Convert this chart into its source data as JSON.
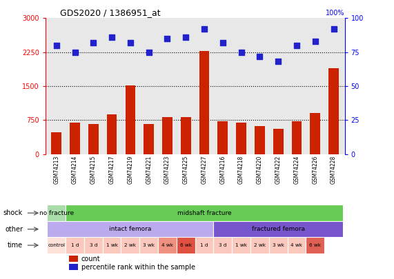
{
  "title": "GDS2020 / 1386951_at",
  "samples": [
    "GSM74213",
    "GSM74214",
    "GSM74215",
    "GSM74217",
    "GSM74219",
    "GSM74221",
    "GSM74223",
    "GSM74225",
    "GSM74227",
    "GSM74216",
    "GSM74218",
    "GSM74220",
    "GSM74222",
    "GSM74224",
    "GSM74226",
    "GSM74228"
  ],
  "counts": [
    480,
    700,
    660,
    880,
    1520,
    660,
    820,
    820,
    2280,
    720,
    700,
    620,
    560,
    720,
    900,
    1900
  ],
  "percentiles": [
    80,
    75,
    82,
    86,
    82,
    75,
    85,
    86,
    92,
    82,
    75,
    72,
    68,
    80,
    83,
    92
  ],
  "ylim_left": [
    0,
    3000
  ],
  "ylim_right": [
    0,
    100
  ],
  "yticks_left": [
    0,
    750,
    1500,
    2250,
    3000
  ],
  "yticks_right": [
    0,
    25,
    50,
    75,
    100
  ],
  "bar_color": "#cc2200",
  "dot_color": "#2222cc",
  "shock_row": {
    "groups": [
      {
        "label": "no fracture",
        "start": 0,
        "end": 1,
        "color": "#aaddaa"
      },
      {
        "label": "midshaft fracture",
        "start": 1,
        "end": 16,
        "color": "#66cc55"
      }
    ]
  },
  "other_row": {
    "groups": [
      {
        "label": "intact femora",
        "start": 0,
        "end": 9,
        "color": "#bbaaee"
      },
      {
        "label": "fractured femora",
        "start": 9,
        "end": 16,
        "color": "#7755cc"
      }
    ]
  },
  "time_row": {
    "cells": [
      {
        "label": "control",
        "start": 0,
        "end": 1,
        "color": "#fde0d8"
      },
      {
        "label": "1 d",
        "start": 1,
        "end": 2,
        "color": "#fac8bc"
      },
      {
        "label": "3 d",
        "start": 2,
        "end": 3,
        "color": "#fac8bc"
      },
      {
        "label": "1 wk",
        "start": 3,
        "end": 4,
        "color": "#fac8bc"
      },
      {
        "label": "2 wk",
        "start": 4,
        "end": 5,
        "color": "#fac8bc"
      },
      {
        "label": "3 wk",
        "start": 5,
        "end": 6,
        "color": "#fac8bc"
      },
      {
        "label": "4 wk",
        "start": 6,
        "end": 7,
        "color": "#f09080"
      },
      {
        "label": "6 wk",
        "start": 7,
        "end": 8,
        "color": "#e05040"
      },
      {
        "label": "1 d",
        "start": 8,
        "end": 9,
        "color": "#fac8bc"
      },
      {
        "label": "3 d",
        "start": 9,
        "end": 10,
        "color": "#fac8bc"
      },
      {
        "label": "1 wk",
        "start": 10,
        "end": 11,
        "color": "#fac8bc"
      },
      {
        "label": "2 wk",
        "start": 11,
        "end": 12,
        "color": "#fac8bc"
      },
      {
        "label": "3 wk",
        "start": 12,
        "end": 13,
        "color": "#fac8bc"
      },
      {
        "label": "4 wk",
        "start": 13,
        "end": 14,
        "color": "#fac8bc"
      },
      {
        "label": "6 wk",
        "start": 14,
        "end": 15,
        "color": "#e06055"
      }
    ]
  },
  "bar_width": 0.55,
  "bg_color": "#e8e8e8",
  "sample_bg": "#d0d0d0",
  "white": "#ffffff"
}
